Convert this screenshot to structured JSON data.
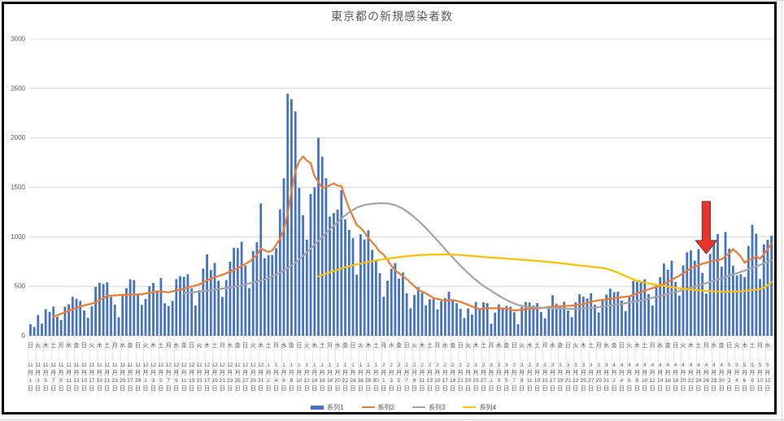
{
  "chart_data": {
    "type": "combo",
    "title": "東京都の新規感染者数",
    "ylim": [
      0,
      3000
    ],
    "y_ticks": [
      0,
      500,
      1000,
      1500,
      2000,
      2500,
      3000
    ],
    "grid": true,
    "legend_position": "bottom",
    "legend": [
      {
        "label": "系列1",
        "swatch": "bar",
        "color": "#4472C4"
      },
      {
        "label": "系列2",
        "swatch": "line",
        "color": "#ED7D31"
      },
      {
        "label": "系列3",
        "swatch": "line",
        "color": "#A5A5A5"
      },
      {
        "label": "系列4",
        "swatch": "line",
        "color": "#FFC000"
      }
    ],
    "x_axis": {
      "tick_every_days": 2,
      "month_suffix": "月",
      "day_suffix": "日",
      "ticks": [
        "日|11|1",
        "火|11|3",
        "木|11|5",
        "土|11|7",
        "月|11|9",
        "水|11|11",
        "金|11|13",
        "日|11|15",
        "火|11|17",
        "木|11|19",
        "土|11|21",
        "月|11|23",
        "水|11|25",
        "金|11|27",
        "日|11|29",
        "火|12|1",
        "木|12|3",
        "土|12|5",
        "月|12|7",
        "水|12|9",
        "金|12|11",
        "日|12|13",
        "火|12|15",
        "木|12|17",
        "土|12|19",
        "月|12|21",
        "水|12|23",
        "金|12|25",
        "日|12|27",
        "火|12|29",
        "木|12|31",
        "土|1|2",
        "月|1|4",
        "水|1|6",
        "金|1|8",
        "日|1|10",
        "火|1|12",
        "木|1|14",
        "土|1|16",
        "月|1|18",
        "水|1|20",
        "金|1|22",
        "日|1|24",
        "火|1|26",
        "木|1|28",
        "土|1|30",
        "月|2|1",
        "水|2|3",
        "金|2|5",
        "日|2|7",
        "火|2|9",
        "木|2|11",
        "土|2|13",
        "月|2|15",
        "水|2|17",
        "金|2|19",
        "日|2|21",
        "火|2|23",
        "木|2|25",
        "土|2|27",
        "月|3|1",
        "水|3|3",
        "金|3|5",
        "日|3|7",
        "火|3|9",
        "木|3|11",
        "土|3|13",
        "月|3|15",
        "水|3|17",
        "金|3|19",
        "日|3|21",
        "火|3|23",
        "木|3|25",
        "土|3|27",
        "月|3|29",
        "水|3|31",
        "金|4|2",
        "日|4|4",
        "火|4|6",
        "木|4|8",
        "土|4|10",
        "月|4|12",
        "水|4|14",
        "金|4|16",
        "日|4|18",
        "火|4|20",
        "木|4|22",
        "土|4|24",
        "月|4|26",
        "水|4|28",
        "金|4|30",
        "日|5|2",
        "火|5|4",
        "木|5|6",
        "土|5|8",
        "月|5|10",
        "水|5|12"
      ]
    },
    "series": [
      {
        "name": "系列1",
        "type": "bar",
        "color": "#4472C4",
        "values": [
          116,
          87,
          209,
          122,
          269,
          242,
          294,
          189,
          157,
          293,
          317,
          393,
          374,
          352,
          255,
          180,
          298,
          493,
          534,
          522,
          539,
          391,
          314,
          186,
          401,
          481,
          570,
          561,
          418,
          311,
          372,
          500,
          533,
          449,
          584,
          327,
          299,
          352,
          572,
          602,
          595,
          621,
          480,
          305,
          460,
          678,
          822,
          664,
          736,
          556,
          392,
          563,
          748,
          888,
          884,
          949,
          708,
          481,
          856,
          944,
          1337,
          783,
          814,
          816,
          884,
          1278,
          1591,
          2447,
          2392,
          2268,
          1494,
          1219,
          970,
          1433,
          1502,
          2001,
          1809,
          1592,
          1204,
          1240,
          1274,
          1471,
          1175,
          1070,
          986,
          618,
          1026,
          973,
          1064,
          868,
          769,
          633,
          393,
          556,
          676,
          734,
          577,
          639,
          429,
          276,
          412,
          491,
          434,
          307,
          369,
          371,
          266,
          350,
          378,
          445,
          353,
          327,
          272,
          178,
          275,
          213,
          340,
          270,
          337,
          329,
          121,
          232,
          316,
          279,
          301,
          293,
          237,
          116,
          290,
          340,
          335,
          304,
          330,
          239,
          175,
          300,
          409,
          323,
          303,
          342,
          256,
          187,
          337,
          420,
          394,
          376,
          430,
          313,
          234,
          364,
          414,
          475,
          440,
          446,
          355,
          249,
          399,
          555,
          545,
          537,
          570,
          421,
          306,
          510,
          591,
          729,
          667,
          759,
          543,
          405,
          711,
          843,
          861,
          759,
          876,
          635,
          425,
          828,
          925,
          1027,
          698,
          1050,
          879,
          708,
          609,
          621,
          591,
          907,
          1121,
          1032,
          573,
          925,
          969,
          1010
        ]
      },
      {
        "name": "系列2",
        "type": "line",
        "color": "#ED7D31",
        "points": [
          [
            6,
            191
          ],
          [
            10,
            252
          ],
          [
            13,
            296
          ],
          [
            17,
            335
          ],
          [
            20,
            403
          ],
          [
            24,
            412
          ],
          [
            27,
            415
          ],
          [
            29,
            418
          ],
          [
            33,
            449
          ],
          [
            36,
            438
          ],
          [
            40,
            476
          ],
          [
            44,
            519
          ],
          [
            47,
            576
          ],
          [
            50,
            615
          ],
          [
            54,
            681
          ],
          [
            57,
            746
          ],
          [
            59,
            816
          ],
          [
            60,
            880
          ],
          [
            62,
            846
          ],
          [
            63,
            862
          ],
          [
            64,
            919
          ],
          [
            65,
            979
          ],
          [
            66,
            1072
          ],
          [
            67,
            1230
          ],
          [
            68,
            1460
          ],
          [
            69,
            1668
          ],
          [
            70,
            1765
          ],
          [
            71,
            1813
          ],
          [
            72,
            1769
          ],
          [
            73,
            1746
          ],
          [
            74,
            1611
          ],
          [
            75,
            1555
          ],
          [
            76,
            1490
          ],
          [
            77,
            1504
          ],
          [
            79,
            1540
          ],
          [
            80,
            1517
          ],
          [
            81,
            1513
          ],
          [
            82,
            1395
          ],
          [
            83,
            1289
          ],
          [
            84,
            1203
          ],
          [
            85,
            1119
          ],
          [
            86,
            1089
          ],
          [
            87,
            1046
          ],
          [
            88,
            987
          ],
          [
            89,
            944
          ],
          [
            90,
            901
          ],
          [
            91,
            848
          ],
          [
            92,
            818
          ],
          [
            94,
            708
          ],
          [
            95,
            661
          ],
          [
            97,
            601
          ],
          [
            98,
            572
          ],
          [
            101,
            465
          ],
          [
            103,
            427
          ],
          [
            105,
            380
          ],
          [
            108,
            354
          ],
          [
            110,
            362
          ],
          [
            112,
            342
          ],
          [
            115,
            295
          ],
          [
            117,
            268
          ],
          [
            119,
            277
          ],
          [
            122,
            278
          ],
          [
            124,
            274
          ],
          [
            126,
            254
          ],
          [
            128,
            262
          ],
          [
            130,
            273
          ],
          [
            133,
            279
          ],
          [
            135,
            289
          ],
          [
            137,
            297
          ],
          [
            140,
            301
          ],
          [
            142,
            308
          ],
          [
            144,
            320
          ],
          [
            147,
            351
          ],
          [
            149,
            362
          ],
          [
            151,
            372
          ],
          [
            154,
            390
          ],
          [
            156,
            397
          ],
          [
            158,
            427
          ],
          [
            161,
            468
          ],
          [
            163,
            492
          ],
          [
            165,
            523
          ],
          [
            168,
            586
          ],
          [
            170,
            629
          ],
          [
            172,
            684
          ],
          [
            175,
            727
          ],
          [
            178,
            758
          ],
          [
            180,
            773
          ],
          [
            182,
            833
          ],
          [
            183,
            874
          ],
          [
            184,
            842
          ],
          [
            185,
            799
          ],
          [
            186,
            737
          ],
          [
            187,
            766
          ],
          [
            188,
            777
          ],
          [
            189,
            798
          ],
          [
            190,
            779
          ],
          [
            191,
            824
          ],
          [
            192,
            874
          ],
          [
            193,
            934
          ]
        ]
      },
      {
        "name": "系列3",
        "type": "line",
        "color": "#A5A5A5",
        "points": [
          [
            40,
            430
          ],
          [
            44,
            446
          ],
          [
            48,
            464
          ],
          [
            52,
            486
          ],
          [
            56,
            517
          ],
          [
            59,
            548
          ],
          [
            61,
            570
          ],
          [
            63,
            598
          ],
          [
            65,
            635
          ],
          [
            67,
            682
          ],
          [
            69,
            738
          ],
          [
            71,
            805
          ],
          [
            73,
            880
          ],
          [
            75,
            958
          ],
          [
            77,
            1038
          ],
          [
            79,
            1112
          ],
          [
            81,
            1185
          ],
          [
            83,
            1248
          ],
          [
            85,
            1295
          ],
          [
            87,
            1322
          ],
          [
            89,
            1334
          ],
          [
            91,
            1340
          ],
          [
            93,
            1337
          ],
          [
            95,
            1320
          ],
          [
            97,
            1285
          ],
          [
            99,
            1230
          ],
          [
            101,
            1163
          ],
          [
            103,
            1088
          ],
          [
            105,
            1005
          ],
          [
            107,
            918
          ],
          [
            109,
            832
          ],
          [
            111,
            748
          ],
          [
            113,
            668
          ],
          [
            115,
            595
          ],
          [
            117,
            532
          ],
          [
            119,
            478
          ],
          [
            121,
            428
          ],
          [
            123,
            382
          ],
          [
            125,
            341
          ],
          [
            127,
            310
          ],
          [
            129,
            295
          ],
          [
            131,
            288
          ],
          [
            133,
            283
          ],
          [
            135,
            280
          ],
          [
            137,
            277
          ],
          [
            139,
            274
          ],
          [
            141,
            272
          ],
          [
            143,
            273
          ],
          [
            145,
            277
          ],
          [
            147,
            284
          ],
          [
            149,
            293
          ],
          [
            151,
            304
          ],
          [
            153,
            316
          ],
          [
            155,
            329
          ],
          [
            157,
            342
          ],
          [
            159,
            357
          ],
          [
            161,
            374
          ],
          [
            163,
            392
          ],
          [
            165,
            410
          ],
          [
            167,
            430
          ],
          [
            169,
            452
          ],
          [
            171,
            474
          ],
          [
            173,
            497
          ],
          [
            175,
            520
          ],
          [
            177,
            544
          ],
          [
            179,
            568
          ],
          [
            181,
            593
          ],
          [
            183,
            619
          ],
          [
            185,
            645
          ],
          [
            187,
            672
          ],
          [
            189,
            700
          ],
          [
            191,
            730
          ],
          [
            193,
            762
          ]
        ]
      },
      {
        "name": "系列4",
        "type": "line",
        "color": "#FFC000",
        "points": [
          [
            75,
            600
          ],
          [
            78,
            642
          ],
          [
            81,
            680
          ],
          [
            84,
            712
          ],
          [
            87,
            738
          ],
          [
            90,
            760
          ],
          [
            93,
            779
          ],
          [
            96,
            795
          ],
          [
            100,
            811
          ],
          [
            104,
            820
          ],
          [
            108,
            822
          ],
          [
            112,
            815
          ],
          [
            116,
            802
          ],
          [
            120,
            790
          ],
          [
            124,
            779
          ],
          [
            128,
            768
          ],
          [
            132,
            756
          ],
          [
            136,
            741
          ],
          [
            140,
            724
          ],
          [
            144,
            706
          ],
          [
            148,
            690
          ],
          [
            150,
            678
          ],
          [
            152,
            652
          ],
          [
            154,
            620
          ],
          [
            156,
            585
          ],
          [
            158,
            556
          ],
          [
            160,
            536
          ],
          [
            163,
            514
          ],
          [
            166,
            496
          ],
          [
            169,
            480
          ],
          [
            172,
            466
          ],
          [
            175,
            455
          ],
          [
            178,
            448
          ],
          [
            181,
            444
          ],
          [
            184,
            447
          ],
          [
            186,
            452
          ],
          [
            188,
            460
          ],
          [
            190,
            472
          ],
          [
            191,
            485
          ],
          [
            192,
            510
          ],
          [
            193,
            540
          ]
        ]
      }
    ],
    "annotation": {
      "type": "down-arrow",
      "at_day_index": 176,
      "fill": "#e8352c",
      "border": "#8f2f2b"
    },
    "style": {
      "gridline_color": "#d9d9d9",
      "axis_line_color": "#bfbfbf",
      "tick_separator_color": "#dedede",
      "label_color": "#595959",
      "frame_border_color": "#000000"
    }
  }
}
